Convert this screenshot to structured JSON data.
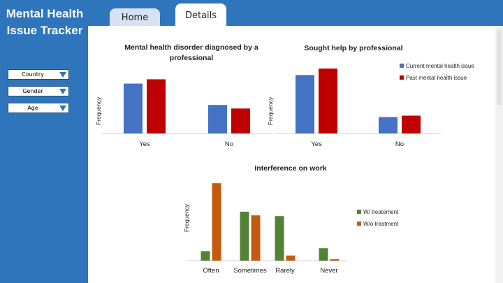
{
  "app": {
    "title_line1": "Mental Health",
    "title_line2": "Issue Tracker"
  },
  "tabs": [
    {
      "label": "Home",
      "active": false
    },
    {
      "label": "Details",
      "active": true
    }
  ],
  "filters": [
    {
      "label": "Country"
    },
    {
      "label": "Gender"
    },
    {
      "label": "Age"
    }
  ],
  "colors": {
    "background": "#2f75bb",
    "current": "#4472c4",
    "past": "#c00000",
    "with_treatment": "#548235",
    "without_treatment": "#c55a11"
  },
  "chart_data": [
    {
      "type": "bar",
      "title": "Mental health disorder diagnosed by a professional",
      "ylabel": "Frequency",
      "xlabel": "",
      "categories": [
        "Yes",
        "No"
      ],
      "series": [
        {
          "name": "Current mental health issue",
          "values": [
            70,
            40
          ]
        },
        {
          "name": "Past mental health issue",
          "values": [
            76,
            35
          ]
        }
      ],
      "ylim": [
        0,
        100
      ],
      "legend": "none",
      "grid": false
    },
    {
      "type": "bar",
      "title": "Sought help by professional",
      "ylabel": "Frequency",
      "xlabel": "",
      "categories": [
        "Yes",
        "No"
      ],
      "series": [
        {
          "name": "Current mental health issue",
          "values": [
            82,
            23
          ]
        },
        {
          "name": "Past mental health issue",
          "values": [
            91,
            25
          ]
        }
      ],
      "ylim": [
        0,
        100
      ],
      "legend": "right",
      "grid": false
    },
    {
      "type": "bar",
      "title": "Interference on work",
      "ylabel": "Frequency",
      "xlabel": "",
      "categories": [
        "Often",
        "Sometimes",
        "Rarely",
        "Never"
      ],
      "series": [
        {
          "name": "W/ treatement",
          "values": [
            13,
            67,
            61,
            17
          ]
        },
        {
          "name": "W/o treatment",
          "values": [
            106,
            62,
            7,
            2
          ]
        }
      ],
      "ylim": [
        0,
        110
      ],
      "legend": "right",
      "grid": false
    }
  ]
}
